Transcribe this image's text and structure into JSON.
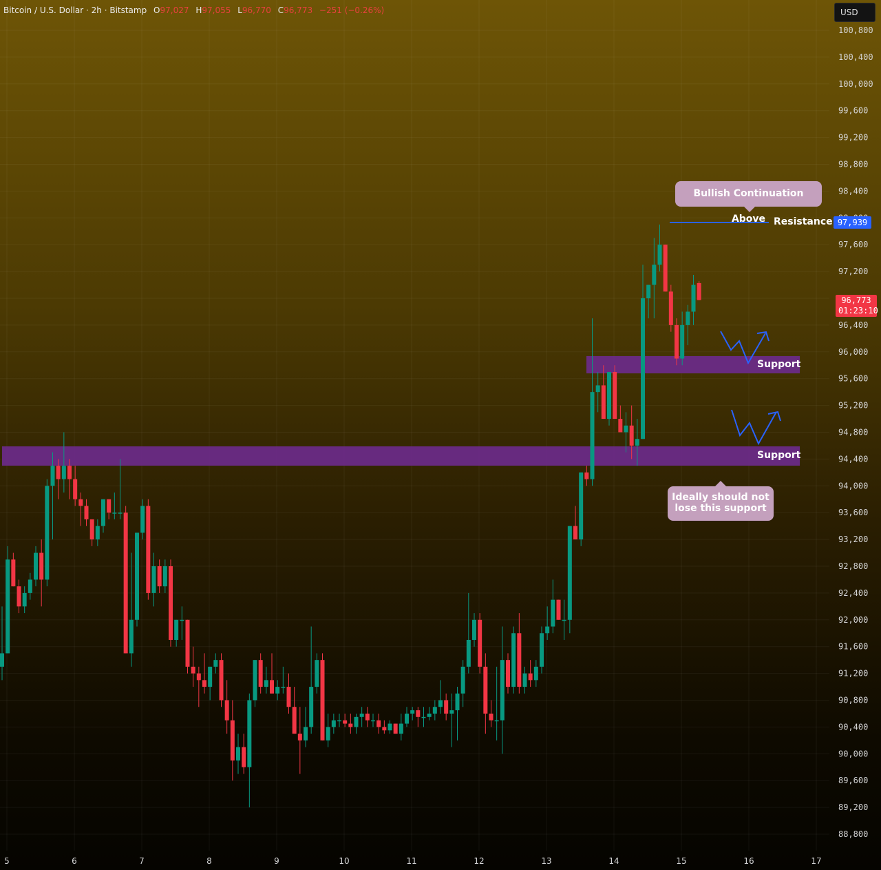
{
  "header": {
    "symbol": "Bitcoin / U.S. Dollar · 2h · Bitstamp",
    "open_label": "O",
    "open": "97,027",
    "high_label": "H",
    "high": "97,055",
    "low_label": "L",
    "low": "96,770",
    "close_label": "C",
    "close": "96,773",
    "change": "−251 (−0.26%)"
  },
  "currency_button": "USD",
  "annotations": {
    "bullish_callout": "Bullish Continuation Above",
    "resistance_label": "Resistance",
    "support_label_upper": "Support",
    "support_label_lower": "Support",
    "support_note_line1": "Ideally should not",
    "support_note_line2": "lose this support"
  },
  "price_tags": {
    "resistance": "97,939",
    "current_price": "96,773",
    "countdown": "01:23:10"
  },
  "colors": {
    "up": "#089981",
    "down": "#f23645",
    "zone": "#6b2a8a",
    "resistance_line": "#2962ff",
    "arrows": "#2962ff",
    "callout_bg": "#c4a0bd"
  },
  "chart_data": {
    "type": "candlestick",
    "title": "Bitcoin / U.S. Dollar · 2h · Bitstamp",
    "ylim": [
      88600,
      101000
    ],
    "y_ticks": [
      88800,
      89200,
      89600,
      90000,
      90400,
      90800,
      91200,
      91600,
      92000,
      92400,
      92800,
      93200,
      93600,
      94000,
      94400,
      94800,
      95200,
      95600,
      96000,
      96400,
      96800,
      97200,
      97600,
      98000,
      98400,
      98800,
      99200,
      99600,
      100000,
      100400,
      100800
    ],
    "y_tick_labels": [
      "88,800",
      "89,200",
      "89,600",
      "90,000",
      "90,400",
      "90,800",
      "91,200",
      "91,600",
      "92,000",
      "92,400",
      "92,800",
      "93,200",
      "93,600",
      "94,000",
      "94,400",
      "94,800",
      "95,200",
      "95,600",
      "96,000",
      "96,400",
      "96,800",
      "97,200",
      "97,600",
      "98,000",
      "98,400",
      "98,800",
      "99,200",
      "99,600",
      "100,000",
      "100,400",
      "100,800"
    ],
    "x_ticks": [
      5,
      6,
      7,
      8,
      9,
      10,
      11,
      12,
      13,
      14,
      15,
      16,
      17
    ],
    "x_tick_labels": [
      "5",
      "6",
      "7",
      "8",
      "9",
      "10",
      "11",
      "12",
      "13",
      "14",
      "15",
      "16",
      "17"
    ],
    "grid": true,
    "resistance_level": 97939,
    "support_zones": [
      [
        95700,
        95940
      ],
      [
        94340,
        94620
      ]
    ],
    "candles": [
      {
        "o": 91300,
        "h": 92200,
        "l": 91100,
        "c": 91500
      },
      {
        "o": 91500,
        "h": 93100,
        "l": 91500,
        "c": 92900
      },
      {
        "o": 92900,
        "h": 93000,
        "l": 92500,
        "c": 92500
      },
      {
        "o": 92500,
        "h": 92600,
        "l": 92100,
        "c": 92200
      },
      {
        "o": 92200,
        "h": 92500,
        "l": 92100,
        "c": 92400
      },
      {
        "o": 92400,
        "h": 92700,
        "l": 92300,
        "c": 92600
      },
      {
        "o": 92600,
        "h": 93100,
        "l": 92500,
        "c": 93000
      },
      {
        "o": 93000,
        "h": 93200,
        "l": 92200,
        "c": 92600
      },
      {
        "o": 92600,
        "h": 94100,
        "l": 92500,
        "c": 94000
      },
      {
        "o": 94000,
        "h": 94500,
        "l": 93200,
        "c": 94300
      },
      {
        "o": 94300,
        "h": 94400,
        "l": 93800,
        "c": 94100
      },
      {
        "o": 94100,
        "h": 94800,
        "l": 93900,
        "c": 94300
      },
      {
        "o": 94300,
        "h": 94400,
        "l": 93800,
        "c": 94100
      },
      {
        "o": 94100,
        "h": 94300,
        "l": 93700,
        "c": 93800
      },
      {
        "o": 93800,
        "h": 93900,
        "l": 93400,
        "c": 93700
      },
      {
        "o": 93700,
        "h": 93800,
        "l": 93400,
        "c": 93500
      },
      {
        "o": 93500,
        "h": 93500,
        "l": 93100,
        "c": 93200
      },
      {
        "o": 93200,
        "h": 93500,
        "l": 93100,
        "c": 93400
      },
      {
        "o": 93400,
        "h": 93800,
        "l": 93300,
        "c": 93800
      },
      {
        "o": 93800,
        "h": 93800,
        "l": 93500,
        "c": 93600
      },
      {
        "o": 93600,
        "h": 93900,
        "l": 93500,
        "c": 93600
      },
      {
        "o": 93600,
        "h": 94400,
        "l": 93500,
        "c": 93600
      },
      {
        "o": 93600,
        "h": 93700,
        "l": 91500,
        "c": 91500
      },
      {
        "o": 91500,
        "h": 93000,
        "l": 91300,
        "c": 92000
      },
      {
        "o": 92000,
        "h": 93300,
        "l": 91900,
        "c": 93300
      },
      {
        "o": 93300,
        "h": 93800,
        "l": 93200,
        "c": 93700
      },
      {
        "o": 93700,
        "h": 93800,
        "l": 92300,
        "c": 92400
      },
      {
        "o": 92400,
        "h": 93000,
        "l": 92200,
        "c": 92800
      },
      {
        "o": 92800,
        "h": 92900,
        "l": 92400,
        "c": 92500
      },
      {
        "o": 92500,
        "h": 92900,
        "l": 92400,
        "c": 92800
      },
      {
        "o": 92800,
        "h": 92900,
        "l": 91600,
        "c": 91700
      },
      {
        "o": 91700,
        "h": 92000,
        "l": 91600,
        "c": 92000
      },
      {
        "o": 92000,
        "h": 92200,
        "l": 91700,
        "c": 92000
      },
      {
        "o": 92000,
        "h": 92000,
        "l": 91200,
        "c": 91300
      },
      {
        "o": 91300,
        "h": 91600,
        "l": 91000,
        "c": 91200
      },
      {
        "o": 91200,
        "h": 91300,
        "l": 90700,
        "c": 91100
      },
      {
        "o": 91100,
        "h": 91500,
        "l": 90900,
        "c": 91000
      },
      {
        "o": 91000,
        "h": 91300,
        "l": 90800,
        "c": 91300
      },
      {
        "o": 91300,
        "h": 91500,
        "l": 91200,
        "c": 91400
      },
      {
        "o": 91400,
        "h": 91500,
        "l": 90700,
        "c": 90800
      },
      {
        "o": 90800,
        "h": 91100,
        "l": 90300,
        "c": 90500
      },
      {
        "o": 90500,
        "h": 90800,
        "l": 89600,
        "c": 89900
      },
      {
        "o": 89900,
        "h": 90300,
        "l": 89700,
        "c": 90100
      },
      {
        "o": 90100,
        "h": 90300,
        "l": 89700,
        "c": 89800
      },
      {
        "o": 89800,
        "h": 90900,
        "l": 89200,
        "c": 90800
      },
      {
        "o": 90800,
        "h": 91400,
        "l": 90700,
        "c": 91400
      },
      {
        "o": 91400,
        "h": 91500,
        "l": 90900,
        "c": 91000
      },
      {
        "o": 91000,
        "h": 91300,
        "l": 90900,
        "c": 91100
      },
      {
        "o": 91100,
        "h": 91500,
        "l": 90900,
        "c": 90900
      },
      {
        "o": 90900,
        "h": 91100,
        "l": 90800,
        "c": 91000
      },
      {
        "o": 91000,
        "h": 91300,
        "l": 90900,
        "c": 91000
      },
      {
        "o": 91000,
        "h": 91200,
        "l": 90600,
        "c": 90700
      },
      {
        "o": 90700,
        "h": 91000,
        "l": 90300,
        "c": 90300
      },
      {
        "o": 90300,
        "h": 90700,
        "l": 89700,
        "c": 90200
      },
      {
        "o": 90200,
        "h": 90700,
        "l": 90100,
        "c": 90400
      },
      {
        "o": 90400,
        "h": 91900,
        "l": 90300,
        "c": 91000
      },
      {
        "o": 91000,
        "h": 91500,
        "l": 90900,
        "c": 91400
      },
      {
        "o": 91400,
        "h": 91500,
        "l": 90200,
        "c": 90200
      },
      {
        "o": 90200,
        "h": 90600,
        "l": 90100,
        "c": 90400
      },
      {
        "o": 90400,
        "h": 90600,
        "l": 90300,
        "c": 90500
      },
      {
        "o": 90500,
        "h": 90600,
        "l": 90400,
        "c": 90500
      },
      {
        "o": 90500,
        "h": 90600,
        "l": 90400,
        "c": 90450
      },
      {
        "o": 90450,
        "h": 90600,
        "l": 90300,
        "c": 90400
      },
      {
        "o": 90400,
        "h": 90600,
        "l": 90300,
        "c": 90550
      },
      {
        "o": 90550,
        "h": 90700,
        "l": 90400,
        "c": 90600
      },
      {
        "o": 90600,
        "h": 90700,
        "l": 90400,
        "c": 90500
      },
      {
        "o": 90500,
        "h": 90600,
        "l": 90400,
        "c": 90500
      },
      {
        "o": 90500,
        "h": 90600,
        "l": 90300,
        "c": 90400
      },
      {
        "o": 90400,
        "h": 90500,
        "l": 90300,
        "c": 90350
      },
      {
        "o": 90350,
        "h": 90500,
        "l": 90300,
        "c": 90450
      },
      {
        "o": 90450,
        "h": 90400,
        "l": 90300,
        "c": 90300
      },
      {
        "o": 90300,
        "h": 90600,
        "l": 90200,
        "c": 90450
      },
      {
        "o": 90450,
        "h": 90700,
        "l": 90400,
        "c": 90600
      },
      {
        "o": 90600,
        "h": 90700,
        "l": 90500,
        "c": 90650
      },
      {
        "o": 90650,
        "h": 90700,
        "l": 90400,
        "c": 90550
      },
      {
        "o": 90550,
        "h": 90700,
        "l": 90400,
        "c": 90550
      },
      {
        "o": 90550,
        "h": 90700,
        "l": 90500,
        "c": 90600
      },
      {
        "o": 90600,
        "h": 90800,
        "l": 90500,
        "c": 90700
      },
      {
        "o": 90700,
        "h": 91100,
        "l": 90600,
        "c": 90800
      },
      {
        "o": 90800,
        "h": 90900,
        "l": 90500,
        "c": 90600
      },
      {
        "o": 90600,
        "h": 90900,
        "l": 90100,
        "c": 90650
      },
      {
        "o": 90650,
        "h": 91000,
        "l": 90200,
        "c": 90900
      },
      {
        "o": 90900,
        "h": 91400,
        "l": 90700,
        "c": 91300
      },
      {
        "o": 91300,
        "h": 92400,
        "l": 91200,
        "c": 91700
      },
      {
        "o": 91700,
        "h": 92100,
        "l": 91600,
        "c": 92000
      },
      {
        "o": 92000,
        "h": 92100,
        "l": 91200,
        "c": 91300
      },
      {
        "o": 91300,
        "h": 91500,
        "l": 90300,
        "c": 90600
      },
      {
        "o": 90600,
        "h": 90800,
        "l": 90400,
        "c": 90500
      },
      {
        "o": 90500,
        "h": 91300,
        "l": 90200,
        "c": 90500
      },
      {
        "o": 90500,
        "h": 91900,
        "l": 90000,
        "c": 91400
      },
      {
        "o": 91400,
        "h": 91500,
        "l": 90900,
        "c": 91000
      },
      {
        "o": 91000,
        "h": 91900,
        "l": 90900,
        "c": 91800
      },
      {
        "o": 91800,
        "h": 92100,
        "l": 90900,
        "c": 91000
      },
      {
        "o": 91000,
        "h": 91300,
        "l": 90900,
        "c": 91200
      },
      {
        "o": 91200,
        "h": 91400,
        "l": 91000,
        "c": 91100
      },
      {
        "o": 91100,
        "h": 91400,
        "l": 91000,
        "c": 91300
      },
      {
        "o": 91300,
        "h": 91900,
        "l": 91200,
        "c": 91800
      },
      {
        "o": 91800,
        "h": 92200,
        "l": 91700,
        "c": 91900
      },
      {
        "o": 91900,
        "h": 92600,
        "l": 91800,
        "c": 92300
      },
      {
        "o": 92300,
        "h": 92300,
        "l": 92000,
        "c": 92000
      },
      {
        "o": 92000,
        "h": 92300,
        "l": 91700,
        "c": 92000
      },
      {
        "o": 92000,
        "h": 93400,
        "l": 91800,
        "c": 93400
      },
      {
        "o": 93400,
        "h": 93700,
        "l": 93200,
        "c": 93200
      },
      {
        "o": 93200,
        "h": 94200,
        "l": 93100,
        "c": 94200
      },
      {
        "o": 94200,
        "h": 94300,
        "l": 94000,
        "c": 94100
      },
      {
        "o": 94100,
        "h": 96500,
        "l": 94000,
        "c": 95400
      },
      {
        "o": 95400,
        "h": 95700,
        "l": 95100,
        "c": 95500
      },
      {
        "o": 95500,
        "h": 95800,
        "l": 95000,
        "c": 95000
      },
      {
        "o": 95000,
        "h": 95700,
        "l": 94900,
        "c": 95700
      },
      {
        "o": 95700,
        "h": 95800,
        "l": 95100,
        "c": 95000
      },
      {
        "o": 95000,
        "h": 95200,
        "l": 94800,
        "c": 94800
      },
      {
        "o": 94800,
        "h": 95100,
        "l": 94500,
        "c": 94900
      },
      {
        "o": 94900,
        "h": 95200,
        "l": 94400,
        "c": 94600
      },
      {
        "o": 94600,
        "h": 95000,
        "l": 94300,
        "c": 94700
      },
      {
        "o": 94700,
        "h": 97300,
        "l": 94700,
        "c": 96800
      },
      {
        "o": 96800,
        "h": 97000,
        "l": 96500,
        "c": 97000
      },
      {
        "o": 97000,
        "h": 97700,
        "l": 96500,
        "c": 97300
      },
      {
        "o": 97300,
        "h": 97900,
        "l": 97200,
        "c": 97600
      },
      {
        "o": 97600,
        "h": 97600,
        "l": 96900,
        "c": 96900
      },
      {
        "o": 96900,
        "h": 97000,
        "l": 96300,
        "c": 96400
      },
      {
        "o": 96400,
        "h": 96500,
        "l": 95800,
        "c": 95900
      },
      {
        "o": 95900,
        "h": 96600,
        "l": 95800,
        "c": 96400
      },
      {
        "o": 96400,
        "h": 96700,
        "l": 96100,
        "c": 96600
      },
      {
        "o": 96600,
        "h": 97150,
        "l": 96400,
        "c": 97000
      },
      {
        "o": 97027,
        "h": 97055,
        "l": 96770,
        "c": 96773
      }
    ]
  }
}
